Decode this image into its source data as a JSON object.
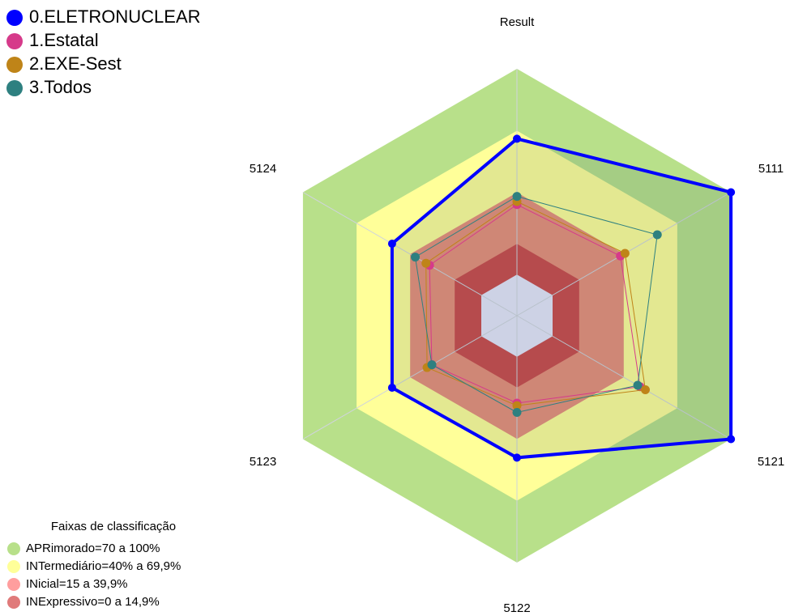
{
  "chart_data": {
    "type": "radar",
    "categories": [
      "Result",
      "5111",
      "5121",
      "5122",
      "5123",
      "5124"
    ],
    "ylim": [
      -20,
      100
    ],
    "center_color": "#e6e6fa",
    "grid": true,
    "series": [
      {
        "name": "0.ELETRONUCLEAR",
        "color": "#0000ff",
        "values": [
          66,
          100,
          100,
          49,
          50,
          50
        ]
      },
      {
        "name": "1.Estatal",
        "color": "#d63a8a",
        "values": [
          34,
          38,
          49,
          22.5,
          27.7,
          29
        ]
      },
      {
        "name": "2.EXE-Sest",
        "color": "#bf8418",
        "values": [
          35.5,
          40.6,
          52,
          23.7,
          30.4,
          31
        ]
      },
      {
        "name": "3.Todos",
        "color": "#2e8080",
        "values": [
          38,
          58.7,
          47.7,
          27,
          27.7,
          37
        ]
      }
    ],
    "legend_title": "Faixas de classificação",
    "bands": [
      {
        "name": "APRimorado=70 a 100%",
        "color": "#b8e08a",
        "legend_color": "#b8e08a",
        "from": 70,
        "to": 100
      },
      {
        "name": "INTermediário=40% a 69,9%",
        "color": "#ffff99",
        "legend_color": "#ffff99",
        "from": 40,
        "to": 69.9
      },
      {
        "name": "INicial=15 a 39,9%",
        "color": "#e8907a",
        "legend_color": "#ff9e9e",
        "from": 15,
        "to": 39.9
      },
      {
        "name": "INExpressivo=0 a 14,9%",
        "color": "#cc4b4b",
        "legend_color": "#e07a7a",
        "from": 0,
        "to": 14.9
      }
    ]
  }
}
